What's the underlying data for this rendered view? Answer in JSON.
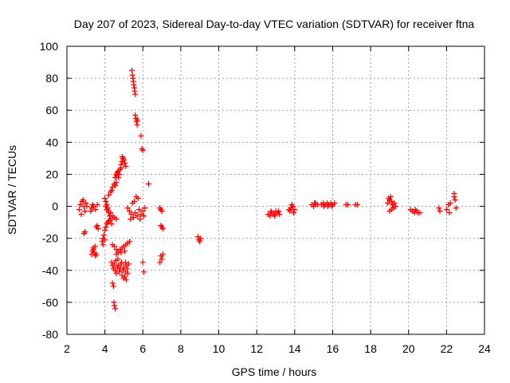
{
  "chart_data": {
    "type": "scatter",
    "title": "Day 207 of 2023, Sidereal Day-to-day VTEC variation (SDTVAR) for receiver ftna",
    "xlabel": "GPS time / hours",
    "ylabel": "SDTVAR / TECUs",
    "xlim": [
      2,
      24
    ],
    "ylim": [
      -80,
      100
    ],
    "xticks": [
      2,
      4,
      6,
      8,
      10,
      12,
      14,
      16,
      18,
      20,
      22,
      24
    ],
    "yticks": [
      -80,
      -60,
      -40,
      -20,
      0,
      20,
      40,
      60,
      80,
      100
    ],
    "grid": true,
    "marker": "plus",
    "color": "#ff0000",
    "series": [
      {
        "name": "SDTVAR",
        "points": [
          [
            2.65,
            -2
          ],
          [
            2.7,
            1
          ],
          [
            2.75,
            -5
          ],
          [
            2.8,
            3
          ],
          [
            2.85,
            4
          ],
          [
            2.9,
            0
          ],
          [
            2.95,
            -3
          ],
          [
            3.0,
            2
          ],
          [
            3.05,
            0
          ],
          [
            2.9,
            -17
          ],
          [
            2.95,
            -16
          ],
          [
            3.25,
            -3
          ],
          [
            3.3,
            -1
          ],
          [
            3.35,
            1
          ],
          [
            3.4,
            0
          ],
          [
            3.5,
            -2
          ],
          [
            3.6,
            1
          ],
          [
            3.3,
            -30
          ],
          [
            3.35,
            -28
          ],
          [
            3.4,
            -27
          ],
          [
            3.45,
            -29
          ],
          [
            3.5,
            -31
          ],
          [
            3.38,
            -26
          ],
          [
            3.48,
            -25
          ],
          [
            3.55,
            -30
          ],
          [
            3.55,
            -13
          ],
          [
            3.6,
            -12
          ],
          [
            3.65,
            -14
          ],
          [
            3.85,
            -22
          ],
          [
            3.9,
            -20
          ],
          [
            3.95,
            -18
          ],
          [
            4.0,
            -15
          ],
          [
            4.05,
            -13
          ],
          [
            4.1,
            -11
          ],
          [
            4.15,
            -10
          ],
          [
            4.2,
            -9
          ],
          [
            3.9,
            -24
          ],
          [
            4.0,
            -21
          ],
          [
            4.0,
            5
          ],
          [
            4.05,
            3
          ],
          [
            4.1,
            1
          ],
          [
            4.15,
            -1
          ],
          [
            4.2,
            -4
          ],
          [
            4.25,
            -6
          ],
          [
            4.3,
            -8
          ],
          [
            4.35,
            -11
          ],
          [
            4.28,
            -9
          ],
          [
            4.05,
            0
          ],
          [
            4.1,
            -2
          ],
          [
            4.2,
            -3
          ],
          [
            4.3,
            -4
          ],
          [
            4.4,
            -6
          ],
          [
            4.5,
            -7
          ],
          [
            4.6,
            -8
          ],
          [
            4.2,
            7
          ],
          [
            4.3,
            9
          ],
          [
            4.4,
            12
          ],
          [
            4.5,
            14
          ],
          [
            4.55,
            13
          ],
          [
            4.6,
            15
          ],
          [
            4.35,
            10
          ],
          [
            4.55,
            18
          ],
          [
            4.6,
            20
          ],
          [
            4.65,
            21
          ],
          [
            4.7,
            22
          ],
          [
            4.75,
            20
          ],
          [
            4.8,
            23
          ],
          [
            4.85,
            24
          ],
          [
            4.62,
            19
          ],
          [
            4.72,
            18
          ],
          [
            4.85,
            26
          ],
          [
            4.9,
            28
          ],
          [
            4.95,
            30
          ],
          [
            5.0,
            29
          ],
          [
            5.05,
            27
          ],
          [
            5.1,
            25
          ],
          [
            4.92,
            31
          ],
          [
            4.35,
            -35
          ],
          [
            4.4,
            -37
          ],
          [
            4.45,
            -39
          ],
          [
            4.5,
            -36
          ],
          [
            4.55,
            -40
          ],
          [
            4.6,
            -42
          ],
          [
            4.65,
            -38
          ],
          [
            4.7,
            -37
          ],
          [
            4.75,
            -41
          ],
          [
            4.8,
            -39
          ],
          [
            4.85,
            -36
          ],
          [
            4.9,
            -43
          ],
          [
            4.95,
            -40
          ],
          [
            5.0,
            -38
          ],
          [
            5.05,
            -44
          ],
          [
            5.1,
            -41
          ],
          [
            5.15,
            -37
          ],
          [
            5.2,
            -42
          ],
          [
            5.25,
            -36
          ],
          [
            4.58,
            -34
          ],
          [
            4.68,
            -33
          ],
          [
            4.88,
            -35
          ],
          [
            5.08,
            -35
          ],
          [
            5.18,
            -39
          ],
          [
            4.98,
            -45
          ],
          [
            5.12,
            -46
          ],
          [
            4.6,
            -30
          ],
          [
            4.7,
            -28
          ],
          [
            4.8,
            -27
          ],
          [
            4.9,
            -26
          ],
          [
            5.0,
            -25
          ],
          [
            5.1,
            -24
          ],
          [
            5.2,
            -23
          ],
          [
            5.3,
            -22
          ],
          [
            4.85,
            -29
          ],
          [
            5.05,
            -28
          ],
          [
            4.4,
            -24
          ],
          [
            4.5,
            -25
          ],
          [
            4.6,
            -27
          ],
          [
            4.7,
            -29
          ],
          [
            4.4,
            -48
          ],
          [
            4.45,
            -50
          ],
          [
            4.5,
            -62
          ],
          [
            4.55,
            -64
          ],
          [
            4.48,
            -60
          ],
          [
            5.2,
            -1
          ],
          [
            5.3,
            -3
          ],
          [
            5.4,
            -5
          ],
          [
            5.5,
            -7
          ],
          [
            5.6,
            -4
          ],
          [
            5.7,
            -6
          ],
          [
            5.8,
            -2
          ],
          [
            5.9,
            -5
          ],
          [
            6.0,
            -3
          ],
          [
            6.1,
            -1
          ],
          [
            5.45,
            2
          ],
          [
            5.55,
            3
          ],
          [
            5.65,
            6
          ],
          [
            5.75,
            5
          ],
          [
            5.35,
            -8
          ],
          [
            5.85,
            -8
          ],
          [
            6.05,
            -6
          ],
          [
            5.42,
            85
          ],
          [
            5.45,
            82
          ],
          [
            5.48,
            80
          ],
          [
            5.5,
            78
          ],
          [
            5.52,
            76
          ],
          [
            5.55,
            74
          ],
          [
            5.57,
            72
          ],
          [
            5.6,
            70
          ],
          [
            5.6,
            57
          ],
          [
            5.63,
            55
          ],
          [
            5.66,
            53
          ],
          [
            5.7,
            51
          ],
          [
            5.72,
            54
          ],
          [
            5.9,
            44
          ],
          [
            5.95,
            36
          ],
          [
            6.0,
            35
          ],
          [
            6.3,
            14
          ],
          [
            6.0,
            -35
          ],
          [
            6.05,
            -41
          ],
          [
            6.9,
            -1
          ],
          [
            6.95,
            -2
          ],
          [
            7.0,
            -3
          ],
          [
            6.95,
            -12
          ],
          [
            7.0,
            -13
          ],
          [
            7.05,
            -14
          ],
          [
            6.95,
            -31
          ],
          [
            7.0,
            -33
          ],
          [
            7.05,
            -30
          ],
          [
            6.9,
            -35
          ],
          [
            8.9,
            -19
          ],
          [
            8.95,
            -21
          ],
          [
            9.0,
            -22
          ],
          [
            9.05,
            -20
          ],
          [
            12.6,
            -5
          ],
          [
            12.7,
            -6
          ],
          [
            12.8,
            -4
          ],
          [
            12.9,
            -5
          ],
          [
            13.0,
            -3
          ],
          [
            13.1,
            -4
          ],
          [
            13.2,
            -5
          ],
          [
            12.75,
            -3
          ],
          [
            12.95,
            -6
          ],
          [
            13.15,
            -3
          ],
          [
            13.7,
            -2
          ],
          [
            13.8,
            -1
          ],
          [
            13.9,
            0
          ],
          [
            14.0,
            -2
          ],
          [
            13.75,
            -3
          ],
          [
            13.95,
            -4
          ],
          [
            13.85,
            1
          ],
          [
            14.9,
            1
          ],
          [
            15.0,
            0
          ],
          [
            15.1,
            2
          ],
          [
            15.2,
            1
          ],
          [
            15.05,
            2
          ],
          [
            15.4,
            1
          ],
          [
            15.5,
            2
          ],
          [
            15.6,
            1
          ],
          [
            15.7,
            2
          ],
          [
            15.8,
            1
          ],
          [
            15.9,
            2
          ],
          [
            16.0,
            1
          ],
          [
            16.1,
            2
          ],
          [
            15.55,
            0
          ],
          [
            15.75,
            0
          ],
          [
            15.95,
            0
          ],
          [
            16.7,
            1
          ],
          [
            16.8,
            1
          ],
          [
            17.2,
            1
          ],
          [
            17.3,
            1
          ],
          [
            18.9,
            2
          ],
          [
            19.0,
            4
          ],
          [
            19.05,
            6
          ],
          [
            19.1,
            3
          ],
          [
            19.15,
            1
          ],
          [
            19.2,
            -1
          ],
          [
            19.25,
            2
          ],
          [
            19.3,
            0
          ],
          [
            19.0,
            -3
          ],
          [
            19.1,
            -2
          ],
          [
            18.95,
            5
          ],
          [
            20.1,
            -2
          ],
          [
            20.2,
            -3
          ],
          [
            20.3,
            -4
          ],
          [
            20.4,
            -3
          ],
          [
            20.5,
            -4
          ],
          [
            20.6,
            -4
          ],
          [
            20.35,
            -2
          ],
          [
            21.6,
            -1
          ],
          [
            21.65,
            -3
          ],
          [
            22.0,
            -2
          ],
          [
            22.1,
            1
          ],
          [
            22.15,
            -4
          ],
          [
            22.2,
            2
          ],
          [
            22.4,
            8
          ],
          [
            22.45,
            4
          ],
          [
            22.5,
            -1
          ],
          [
            22.4,
            6
          ]
        ]
      }
    ]
  }
}
